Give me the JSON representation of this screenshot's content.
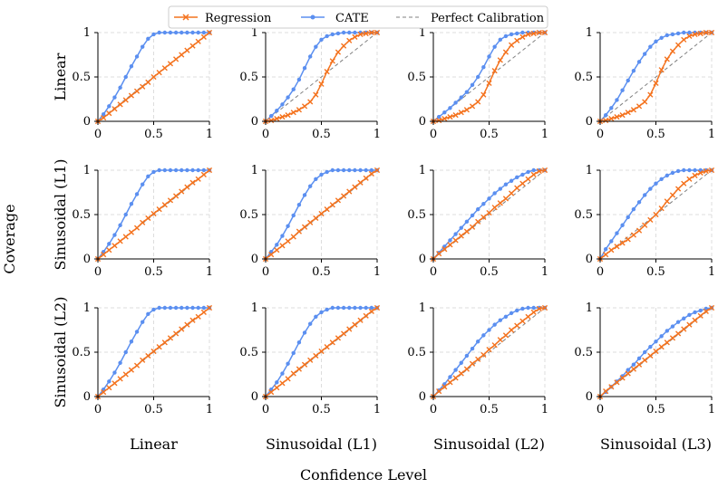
{
  "chart_data": {
    "type": "line",
    "x_title": "Confidence Level",
    "y_title": "Coverage",
    "row_labels": [
      "Linear",
      "Sinusoidal (L1)",
      "Sinusoidal (L2)"
    ],
    "col_labels": [
      "Linear",
      "Sinusoidal (L1)",
      "Sinusoidal (L2)",
      "Sinusoidal (L3)"
    ],
    "xlim": [
      0,
      1
    ],
    "ylim": [
      0,
      1
    ],
    "x_ticks": [
      "0",
      "0.5",
      "1"
    ],
    "y_ticks": [
      "0",
      "0.5",
      "1"
    ],
    "grid": true,
    "legend_position": "top-center",
    "legend": [
      {
        "name": "Regression",
        "color": "#f4731f",
        "marker": "x"
      },
      {
        "name": "CATE",
        "color": "#5b8ff0",
        "marker": "o"
      },
      {
        "name": "Perfect Calibration",
        "color": "#808080",
        "marker": "none",
        "dashed": true
      }
    ],
    "x": [
      0,
      0.05,
      0.1,
      0.15,
      0.2,
      0.25,
      0.3,
      0.35,
      0.4,
      0.45,
      0.5,
      0.55,
      0.6,
      0.65,
      0.7,
      0.75,
      0.8,
      0.85,
      0.9,
      0.95,
      1
    ],
    "panels": [
      {
        "row": 0,
        "col": 0,
        "regression": [
          0,
          0.04,
          0.09,
          0.14,
          0.19,
          0.24,
          0.29,
          0.34,
          0.39,
          0.44,
          0.5,
          0.55,
          0.6,
          0.65,
          0.7,
          0.75,
          0.8,
          0.85,
          0.9,
          0.95,
          1
        ],
        "cate": [
          0,
          0.08,
          0.17,
          0.27,
          0.38,
          0.5,
          0.62,
          0.73,
          0.84,
          0.93,
          0.98,
          1,
          1,
          1,
          1,
          1,
          1,
          1,
          1,
          1,
          1
        ]
      },
      {
        "row": 0,
        "col": 1,
        "regression": [
          0,
          0.01,
          0.03,
          0.05,
          0.07,
          0.1,
          0.13,
          0.17,
          0.22,
          0.3,
          0.42,
          0.56,
          0.68,
          0.78,
          0.85,
          0.91,
          0.95,
          0.98,
          0.99,
          1,
          1
        ],
        "cate": [
          0,
          0.06,
          0.12,
          0.19,
          0.27,
          0.36,
          0.47,
          0.6,
          0.73,
          0.84,
          0.92,
          0.96,
          0.98,
          0.99,
          1,
          1,
          1,
          1,
          1,
          1,
          1
        ]
      },
      {
        "row": 0,
        "col": 2,
        "regression": [
          0,
          0.01,
          0.03,
          0.05,
          0.07,
          0.1,
          0.13,
          0.17,
          0.22,
          0.3,
          0.43,
          0.57,
          0.69,
          0.78,
          0.86,
          0.91,
          0.95,
          0.98,
          0.99,
          1,
          1
        ],
        "cate": [
          0,
          0.05,
          0.1,
          0.15,
          0.21,
          0.27,
          0.33,
          0.41,
          0.5,
          0.61,
          0.73,
          0.84,
          0.92,
          0.96,
          0.98,
          0.99,
          1,
          1,
          1,
          1,
          1
        ]
      },
      {
        "row": 0,
        "col": 3,
        "regression": [
          0,
          0.01,
          0.03,
          0.05,
          0.07,
          0.1,
          0.13,
          0.17,
          0.22,
          0.3,
          0.43,
          0.58,
          0.7,
          0.79,
          0.86,
          0.92,
          0.96,
          0.98,
          0.99,
          1,
          1
        ],
        "cate": [
          0,
          0.07,
          0.15,
          0.24,
          0.35,
          0.46,
          0.57,
          0.67,
          0.76,
          0.84,
          0.9,
          0.94,
          0.97,
          0.98,
          0.99,
          1,
          1,
          1,
          1,
          1,
          1
        ]
      },
      {
        "row": 1,
        "col": 0,
        "regression": [
          0,
          0.05,
          0.1,
          0.15,
          0.2,
          0.25,
          0.3,
          0.35,
          0.41,
          0.46,
          0.51,
          0.56,
          0.61,
          0.66,
          0.71,
          0.76,
          0.81,
          0.86,
          0.9,
          0.95,
          1
        ],
        "cate": [
          0,
          0.08,
          0.17,
          0.27,
          0.38,
          0.5,
          0.62,
          0.73,
          0.84,
          0.93,
          0.98,
          1,
          1,
          1,
          1,
          1,
          1,
          1,
          1,
          1,
          1
        ]
      },
      {
        "row": 1,
        "col": 1,
        "regression": [
          0,
          0.05,
          0.1,
          0.15,
          0.2,
          0.25,
          0.31,
          0.36,
          0.41,
          0.46,
          0.51,
          0.56,
          0.61,
          0.66,
          0.71,
          0.76,
          0.81,
          0.86,
          0.91,
          0.96,
          1
        ],
        "cate": [
          0,
          0.08,
          0.16,
          0.26,
          0.37,
          0.49,
          0.61,
          0.72,
          0.82,
          0.9,
          0.95,
          0.98,
          1,
          1,
          1,
          1,
          1,
          1,
          1,
          1,
          1
        ]
      },
      {
        "row": 1,
        "col": 2,
        "regression": [
          0,
          0.06,
          0.11,
          0.16,
          0.21,
          0.26,
          0.31,
          0.36,
          0.42,
          0.47,
          0.52,
          0.58,
          0.63,
          0.68,
          0.74,
          0.8,
          0.85,
          0.9,
          0.95,
          0.99,
          1
        ],
        "cate": [
          0,
          0.07,
          0.14,
          0.21,
          0.28,
          0.35,
          0.42,
          0.49,
          0.56,
          0.62,
          0.68,
          0.74,
          0.79,
          0.84,
          0.88,
          0.92,
          0.95,
          0.98,
          1,
          1,
          1
        ]
      },
      {
        "row": 1,
        "col": 3,
        "regression": [
          0,
          0.05,
          0.1,
          0.14,
          0.18,
          0.22,
          0.27,
          0.32,
          0.38,
          0.44,
          0.5,
          0.57,
          0.65,
          0.72,
          0.79,
          0.85,
          0.9,
          0.94,
          0.97,
          0.99,
          1
        ],
        "cate": [
          0,
          0.11,
          0.2,
          0.29,
          0.38,
          0.47,
          0.56,
          0.64,
          0.72,
          0.79,
          0.85,
          0.9,
          0.94,
          0.97,
          0.99,
          1,
          1,
          1,
          1,
          1,
          1
        ]
      },
      {
        "row": 2,
        "col": 0,
        "regression": [
          0,
          0.05,
          0.1,
          0.15,
          0.2,
          0.25,
          0.3,
          0.35,
          0.41,
          0.46,
          0.51,
          0.56,
          0.61,
          0.66,
          0.71,
          0.76,
          0.81,
          0.86,
          0.9,
          0.95,
          1
        ],
        "cate": [
          0,
          0.08,
          0.17,
          0.27,
          0.38,
          0.5,
          0.62,
          0.73,
          0.84,
          0.93,
          0.98,
          1,
          1,
          1,
          1,
          1,
          1,
          1,
          1,
          1,
          1
        ]
      },
      {
        "row": 2,
        "col": 1,
        "regression": [
          0,
          0.05,
          0.1,
          0.15,
          0.2,
          0.26,
          0.31,
          0.36,
          0.41,
          0.46,
          0.51,
          0.56,
          0.61,
          0.66,
          0.71,
          0.76,
          0.81,
          0.86,
          0.91,
          0.96,
          1
        ],
        "cate": [
          0,
          0.08,
          0.16,
          0.26,
          0.37,
          0.49,
          0.61,
          0.72,
          0.82,
          0.9,
          0.95,
          0.98,
          1,
          1,
          1,
          1,
          1,
          1,
          1,
          1,
          1
        ]
      },
      {
        "row": 2,
        "col": 2,
        "regression": [
          0,
          0.06,
          0.11,
          0.16,
          0.21,
          0.26,
          0.31,
          0.37,
          0.42,
          0.47,
          0.53,
          0.58,
          0.64,
          0.69,
          0.75,
          0.8,
          0.85,
          0.9,
          0.95,
          0.99,
          1
        ],
        "cate": [
          0,
          0.07,
          0.14,
          0.22,
          0.3,
          0.38,
          0.46,
          0.54,
          0.62,
          0.69,
          0.75,
          0.81,
          0.86,
          0.9,
          0.94,
          0.97,
          0.99,
          1,
          1,
          1,
          1
        ]
      },
      {
        "row": 2,
        "col": 3,
        "regression": [
          0,
          0.06,
          0.11,
          0.16,
          0.21,
          0.26,
          0.31,
          0.36,
          0.41,
          0.46,
          0.51,
          0.56,
          0.61,
          0.66,
          0.71,
          0.76,
          0.81,
          0.86,
          0.91,
          0.96,
          1
        ],
        "cate": [
          0,
          0.05,
          0.11,
          0.17,
          0.23,
          0.3,
          0.36,
          0.43,
          0.5,
          0.56,
          0.62,
          0.68,
          0.74,
          0.79,
          0.84,
          0.88,
          0.92,
          0.95,
          0.97,
          0.99,
          1
        ]
      }
    ]
  }
}
